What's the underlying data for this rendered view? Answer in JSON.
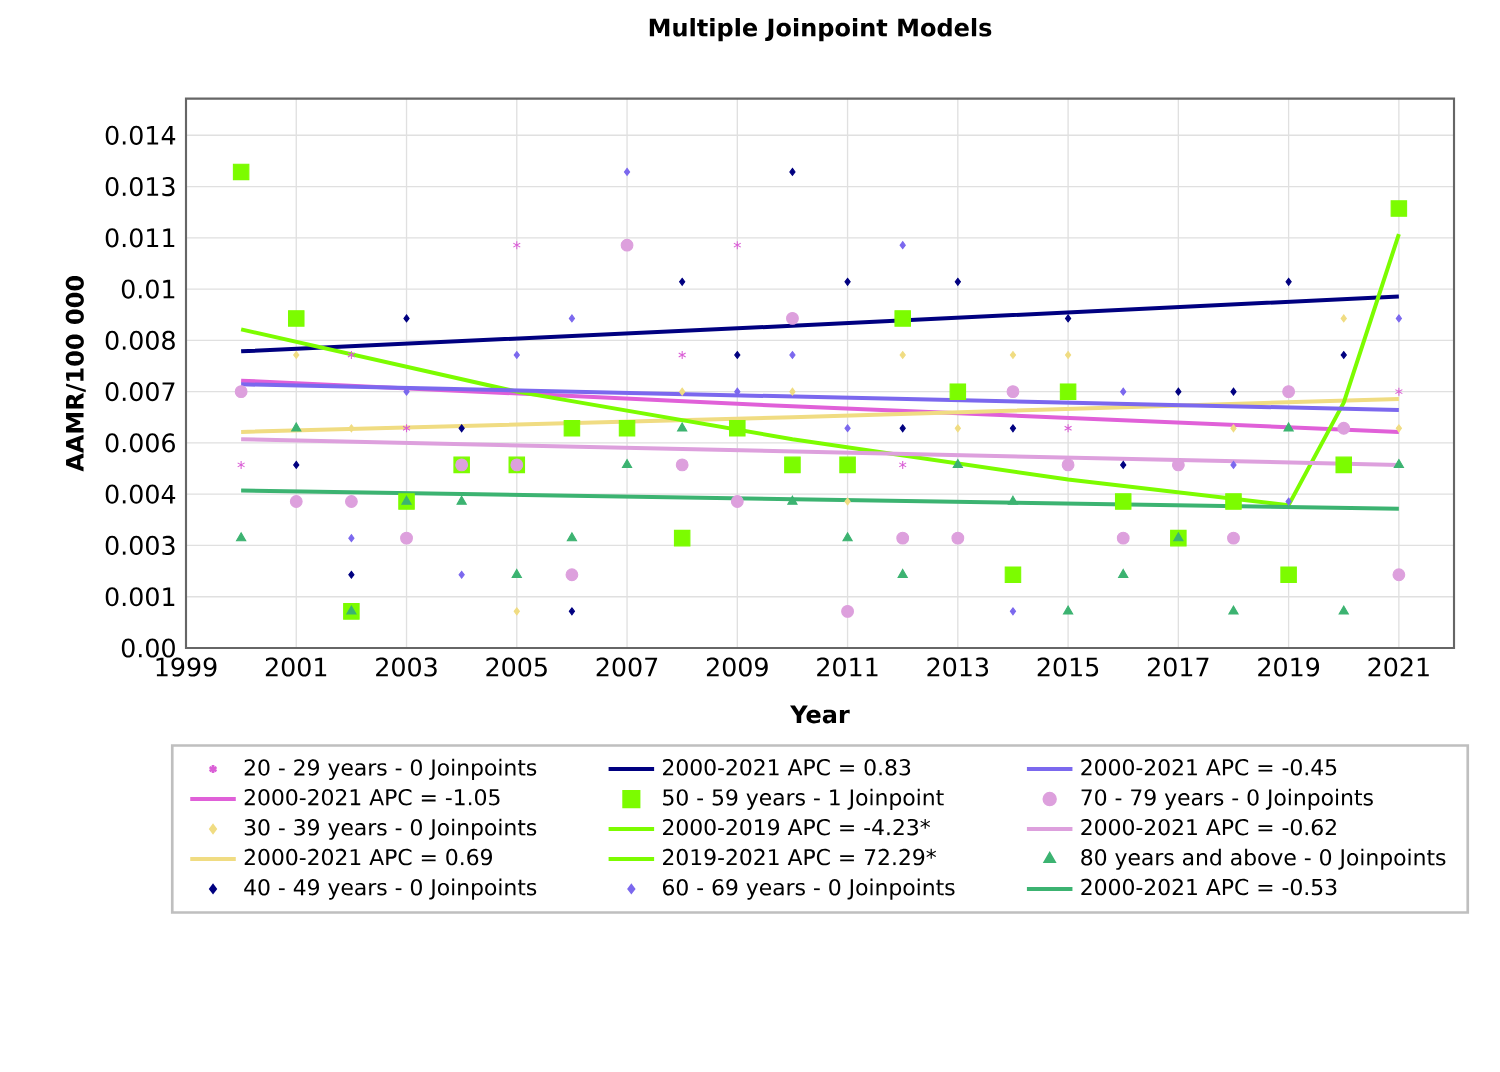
{
  "chart_data": {
    "type": "scatter",
    "title": "Multiple Joinpoint Models",
    "xlabel": "Year",
    "ylabel": "AAMR/100 000",
    "xlim": [
      1999,
      2022
    ],
    "xticks": [
      1999,
      2001,
      2003,
      2005,
      2007,
      2009,
      2011,
      2013,
      2015,
      2017,
      2019,
      2021
    ],
    "ylim": [
      0,
      0.015
    ],
    "yticks": [
      {
        "value": 0,
        "label": "0.00"
      },
      {
        "value": 0.0014,
        "label": "0.001"
      },
      {
        "value": 0.0028,
        "label": "0.003"
      },
      {
        "value": 0.0042,
        "label": "0.004"
      },
      {
        "value": 0.0056,
        "label": "0.006"
      },
      {
        "value": 0.007,
        "label": "0.007"
      },
      {
        "value": 0.0084,
        "label": "0.008"
      },
      {
        "value": 0.0098,
        "label": "0.01"
      },
      {
        "value": 0.0112,
        "label": "0.011"
      },
      {
        "value": 0.0126,
        "label": "0.013"
      },
      {
        "value": 0.014,
        "label": "0.014"
      }
    ],
    "grid": true,
    "legend": "bottom",
    "series": [
      {
        "name": "20 - 29 years - 0 Joinpoints",
        "marker": "cross",
        "color": "#da5fd6",
        "x": [
          2000,
          2002,
          2003,
          2005,
          2008,
          2009,
          2012,
          2015,
          2021
        ],
        "values": [
          0.005,
          0.008,
          0.006,
          0.011,
          0.008,
          0.011,
          0.005,
          0.006,
          0.007
        ]
      },
      {
        "name": "2000-2021 APC  = -1.05",
        "type": "line",
        "color": "#e060d8",
        "x": [
          2000,
          2010,
          2021
        ],
        "values": [
          0.0073,
          0.0066,
          0.0059
        ]
      },
      {
        "name": "30 - 39 years - 0 Joinpoints",
        "marker": "diamond",
        "color": "#f0dc82",
        "x": [
          2001,
          2002,
          2005,
          2008,
          2010,
          2011,
          2012,
          2013,
          2014,
          2015,
          2018,
          2020,
          2021
        ],
        "values": [
          0.008,
          0.006,
          0.001,
          0.007,
          0.007,
          0.004,
          0.008,
          0.006,
          0.008,
          0.008,
          0.006,
          0.009,
          0.006
        ]
      },
      {
        "name": "2000-2021 APC  = 0.69",
        "type": "line",
        "color": "#f0dc82",
        "x": [
          2000,
          2010,
          2021
        ],
        "values": [
          0.0059,
          0.0063,
          0.0068
        ]
      },
      {
        "name": "40 - 49 years - 0 Joinpoints",
        "marker": "diamond",
        "color": "#000080",
        "x": [
          2001,
          2002,
          2003,
          2004,
          2006,
          2008,
          2009,
          2010,
          2011,
          2012,
          2013,
          2014,
          2015,
          2016,
          2017,
          2018,
          2019,
          2020
        ],
        "values": [
          0.005,
          0.002,
          0.009,
          0.006,
          0.001,
          0.01,
          0.008,
          0.013,
          0.01,
          0.006,
          0.01,
          0.006,
          0.009,
          0.005,
          0.007,
          0.007,
          0.01,
          0.008
        ]
      },
      {
        "name": "2000-2021 APC  = 0.83",
        "type": "line",
        "color": "#000080",
        "x": [
          2000,
          2010,
          2021
        ],
        "values": [
          0.0081,
          0.0088,
          0.0096
        ]
      },
      {
        "name": "50 - 59 years - 1 Joinpoint",
        "marker": "square",
        "color": "#7cfc00",
        "x": [
          2000,
          2001,
          2002,
          2003,
          2004,
          2005,
          2006,
          2007,
          2008,
          2009,
          2010,
          2011,
          2012,
          2013,
          2014,
          2015,
          2016,
          2017,
          2018,
          2019,
          2020,
          2021
        ],
        "values": [
          0.013,
          0.009,
          0.001,
          0.004,
          0.005,
          0.005,
          0.006,
          0.006,
          0.003,
          0.006,
          0.005,
          0.005,
          0.009,
          0.007,
          0.002,
          0.007,
          0.004,
          0.003,
          0.004,
          0.002,
          0.005,
          0.012
        ]
      },
      {
        "name": "2000-2019 APC  = -4.23*",
        "type": "line",
        "color": "#7cfc00",
        "x": [
          2000,
          2005,
          2010,
          2015,
          2019
        ],
        "values": [
          0.0087,
          0.007,
          0.0057,
          0.0046,
          0.0039
        ]
      },
      {
        "name": "2019-2021 APC  = 72.29*",
        "type": "line",
        "color": "#7cfc00",
        "x": [
          2019,
          2020,
          2021
        ],
        "values": [
          0.0039,
          0.0067,
          0.0113
        ]
      },
      {
        "name": "60 - 69 years - 0 Joinpoints",
        "marker": "diamond",
        "color": "#7b68ee",
        "x": [
          2002,
          2003,
          2004,
          2005,
          2006,
          2007,
          2009,
          2010,
          2011,
          2012,
          2014,
          2016,
          2018,
          2019,
          2021
        ],
        "values": [
          0.003,
          0.007,
          0.002,
          0.008,
          0.009,
          0.013,
          0.007,
          0.008,
          0.006,
          0.011,
          0.001,
          0.007,
          0.005,
          0.004,
          0.009
        ]
      },
      {
        "name": "2000-2021 APC  = -0.45",
        "type": "line",
        "color": "#7b68ee",
        "x": [
          2000,
          2021
        ],
        "values": [
          0.0072,
          0.0065
        ]
      },
      {
        "name": "70 - 79 years - 0 Joinpoints",
        "marker": "circle",
        "color": "#dda0dd",
        "x": [
          2000,
          2001,
          2002,
          2003,
          2004,
          2005,
          2006,
          2007,
          2008,
          2009,
          2010,
          2011,
          2012,
          2013,
          2014,
          2015,
          2016,
          2017,
          2018,
          2019,
          2020,
          2021
        ],
        "values": [
          0.007,
          0.004,
          0.004,
          0.003,
          0.005,
          0.005,
          0.002,
          0.011,
          0.005,
          0.004,
          0.009,
          0.001,
          0.003,
          0.003,
          0.007,
          0.005,
          0.003,
          0.005,
          0.003,
          0.007,
          0.006,
          0.002
        ]
      },
      {
        "name": "2000-2021 APC  = -0.62",
        "type": "line",
        "color": "#dda0dd",
        "x": [
          2000,
          2021
        ],
        "values": [
          0.0057,
          0.005
        ]
      },
      {
        "name": "80 years and above - 0 Joinpoints",
        "marker": "triangle",
        "color": "#3cb371",
        "x": [
          2000,
          2001,
          2002,
          2003,
          2004,
          2005,
          2006,
          2007,
          2008,
          2010,
          2011,
          2012,
          2013,
          2014,
          2015,
          2016,
          2017,
          2018,
          2019,
          2020,
          2021
        ],
        "values": [
          0.003,
          0.006,
          0.001,
          0.004,
          0.004,
          0.002,
          0.003,
          0.005,
          0.006,
          0.004,
          0.003,
          0.002,
          0.005,
          0.004,
          0.001,
          0.002,
          0.003,
          0.001,
          0.006,
          0.001,
          0.005
        ]
      },
      {
        "name": "2000-2021 APC  = -0.53",
        "type": "line",
        "color": "#3cb371",
        "x": [
          2000,
          2021
        ],
        "values": [
          0.0043,
          0.0038
        ]
      }
    ]
  }
}
